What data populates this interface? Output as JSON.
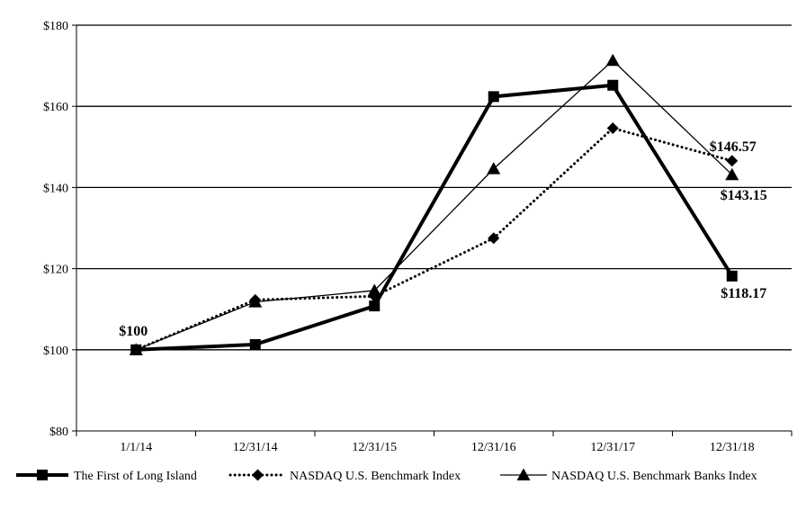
{
  "chart_data": {
    "type": "line",
    "title": "",
    "xlabel": "",
    "ylabel": "",
    "categories": [
      "1/1/14",
      "12/31/14",
      "12/31/15",
      "12/31/16",
      "12/31/17",
      "12/31/18"
    ],
    "ylim": [
      80,
      180
    ],
    "yticks": [
      80,
      100,
      120,
      140,
      160,
      180
    ],
    "ytick_labels": [
      "$80",
      "$100",
      "$120",
      "$140",
      "$160",
      "$180"
    ],
    "grid": "horizontal",
    "legend_position": "bottom",
    "series": [
      {
        "name": "The First of Long Island",
        "values": [
          100,
          101.3,
          110.8,
          162.4,
          165.2,
          118.17
        ],
        "style": "thick-solid",
        "marker": "square",
        "color": "#000000"
      },
      {
        "name": "NASDAQ U.S. Benchmark Index",
        "values": [
          100,
          112.3,
          113.2,
          127.5,
          154.6,
          146.57
        ],
        "style": "dotted",
        "marker": "diamond",
        "color": "#000000"
      },
      {
        "name": "NASDAQ U.S. Benchmark Banks Index",
        "values": [
          100,
          111.8,
          114.6,
          144.6,
          171.3,
          143.15
        ],
        "style": "thin-solid",
        "marker": "triangle",
        "color": "#000000"
      }
    ],
    "annotations": [
      {
        "text": "$100",
        "category": "1/1/14",
        "value": 100
      },
      {
        "text": "$146.57",
        "category": "12/31/18",
        "value": 146.57
      },
      {
        "text": "$143.15",
        "category": "12/31/18",
        "value": 143.15
      },
      {
        "text": "$118.17",
        "category": "12/31/18",
        "value": 118.17
      }
    ]
  }
}
